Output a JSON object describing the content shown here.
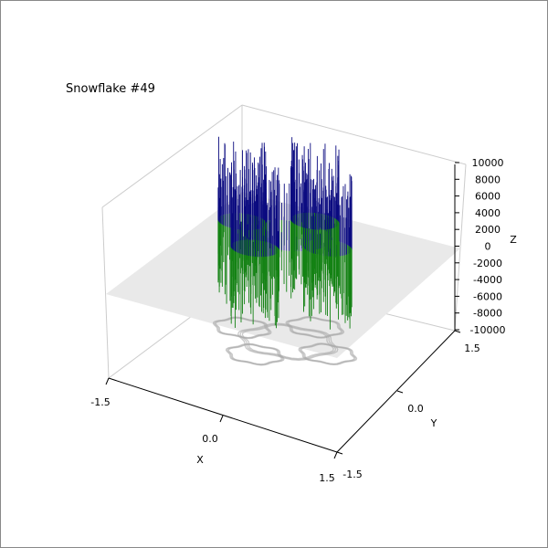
{
  "chart_data": {
    "type": "3d-stem",
    "title": "Snowflake #49",
    "xlabel": "X",
    "ylabel": "Y",
    "zlabel": "Z",
    "xlim": [
      -1.5,
      1.5
    ],
    "ylim": [
      -1.5,
      1.5
    ],
    "zlim": [
      -10000,
      10000
    ],
    "x_ticks": [
      "-1.5",
      "0.0",
      "1.5"
    ],
    "y_ticks": [
      "-1.5",
      "0.0",
      "1.5"
    ],
    "z_ticks": [
      "-10000",
      "-8000",
      "-6000",
      "-4000",
      "-2000",
      "0",
      "2000",
      "4000",
      "6000",
      "8000",
      "10000"
    ],
    "grid": true,
    "reference_plane_z": 0,
    "series": [
      {
        "color": "#0b0b80",
        "sign": "positive",
        "z_range": [
          0,
          9600
        ]
      },
      {
        "color": "#148214",
        "sign": "negative",
        "z_range": [
          -9200,
          0
        ]
      }
    ],
    "shadow": {
      "color": "#a9a9a9",
      "z": -10000
    }
  }
}
